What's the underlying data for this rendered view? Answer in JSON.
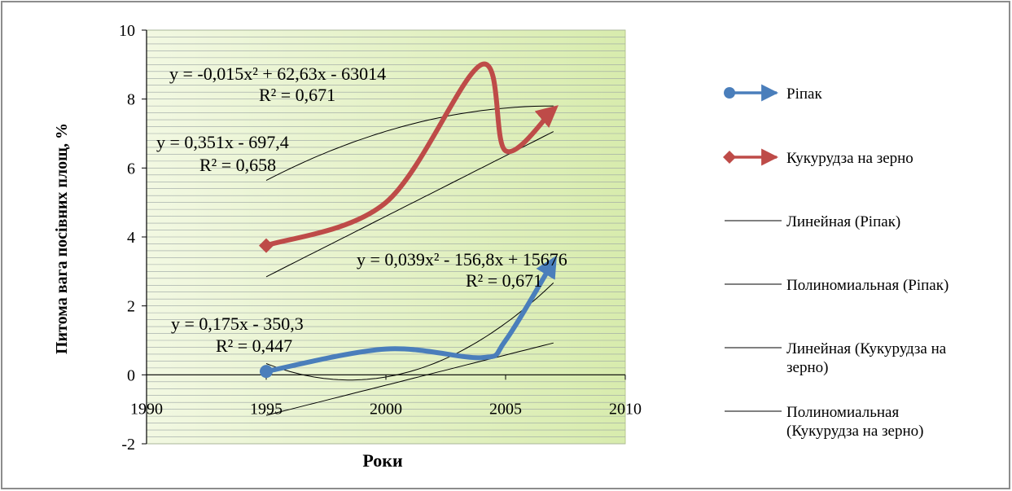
{
  "chart_data": {
    "type": "scatter",
    "title": "",
    "xlabel": "Роки",
    "ylabel": "Питома вага посівних площ, %",
    "xlim": [
      1990,
      2010
    ],
    "ylim": [
      -2,
      10
    ],
    "x_ticks": [
      "1990",
      "1995",
      "2000",
      "2005",
      "2010"
    ],
    "y_ticks": [
      "-2",
      "0",
      "2",
      "4",
      "6",
      "8",
      "10"
    ],
    "grid": "horizontal",
    "legend_position": "right",
    "series": [
      {
        "name": "Ріпак",
        "color": "#4a7ebb",
        "smooth": true,
        "marker": "circle",
        "x": [
          1995,
          2000,
          2004,
          2005,
          2007
        ],
        "y": [
          0.1,
          0.75,
          0.5,
          1.0,
          3.3
        ]
      },
      {
        "name": "Кукурудза на зерно",
        "color": "#be4b48",
        "smooth": true,
        "marker": "diamond",
        "x": [
          1995,
          2000,
          2004,
          2005,
          2007
        ],
        "y": [
          3.75,
          5.0,
          9.0,
          6.5,
          7.7
        ]
      }
    ],
    "trendlines": [
      {
        "name": "Линейная (Ріпак)",
        "kind": "linear",
        "coef": [
          0.175,
          -350.3
        ],
        "xrange": [
          1995,
          2007
        ],
        "color": "#000000"
      },
      {
        "name": "Полиномиальная (Ріпак)",
        "kind": "poly2",
        "vertex": [
          1998.5,
          -0.15
        ],
        "a": 0.039,
        "xrange": [
          1995,
          2007
        ],
        "color": "#000000"
      },
      {
        "name": "Линейная (Кукурудза на зерно)",
        "kind": "linear",
        "coef": [
          0.351,
          -697.4
        ],
        "xrange": [
          1995,
          2007
        ],
        "color": "#000000"
      },
      {
        "name": "Полиномиальная (Кукурудза на зерно)",
        "kind": "poly2",
        "vertex": [
          2007.0,
          7.8
        ],
        "a": -0.015,
        "xrange": [
          1995,
          2007
        ],
        "color": "#000000"
      }
    ],
    "annotations": [
      {
        "eq": "y = -0,015x² + 62,63x - 63014",
        "r2": "R² = 0,671"
      },
      {
        "eq": "y = 0,351x - 697,4",
        "r2": "R² = 0,658"
      },
      {
        "eq": "y = 0,039x² - 156,8x + 15676",
        "r2": "R² = 0,671"
      },
      {
        "eq": "y = 0,175x - 350,3",
        "r2": "R² = 0,447"
      }
    ],
    "legend": [
      {
        "label": "Ріпак",
        "style": "series-circle",
        "color": "#4a7ebb"
      },
      {
        "label": "Кукурудза на зерно",
        "style": "series-diamond",
        "color": "#be4b48"
      },
      {
        "label": "Линейная (Ріпак)",
        "style": "line",
        "color": "#000000"
      },
      {
        "label": "Полиномиальная (Ріпак)",
        "style": "line",
        "color": "#000000"
      },
      {
        "label": "Линейная (Кукурудза на зерно)",
        "style": "line",
        "color": "#000000"
      },
      {
        "label": "Полиномиальная (Кукурудза на зерно)",
        "style": "line",
        "color": "#000000"
      }
    ],
    "plot_area_color": "#eef6d6"
  }
}
